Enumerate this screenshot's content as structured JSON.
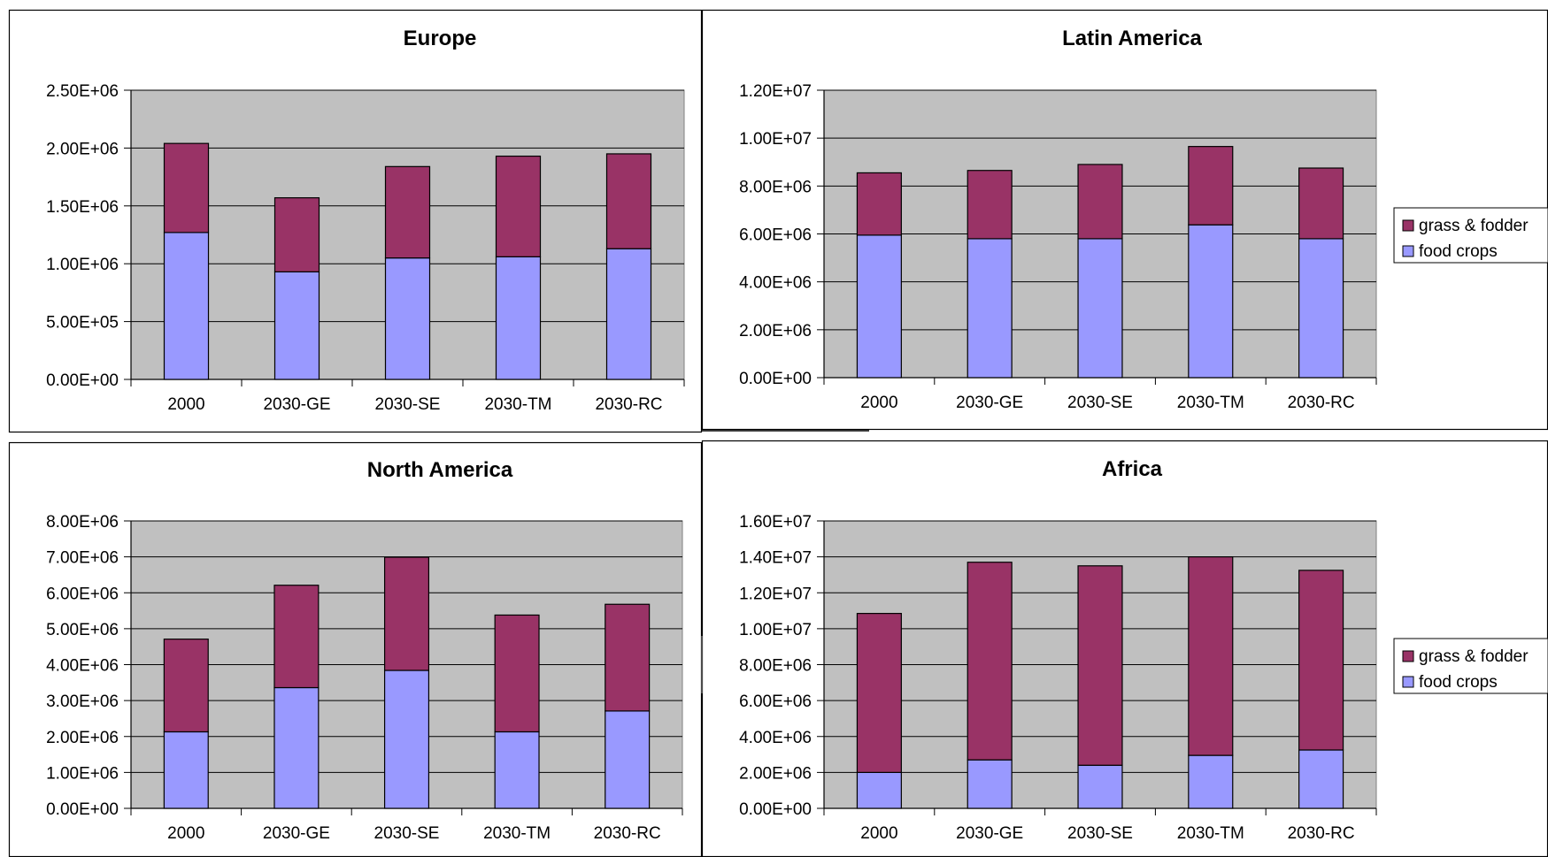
{
  "colors": {
    "food_crops": "#9999ff",
    "grass_fodder": "#993366",
    "plot_area": "#c0c0c0",
    "gridline": "#000000",
    "frame": "#000000"
  },
  "legend": {
    "entries": [
      "grass & fodder",
      "food crops"
    ],
    "placement": "right"
  },
  "chart_data": [
    {
      "type": "bar",
      "stacked": true,
      "title": "Europe",
      "categories": [
        "2000",
        "2030-GE",
        "2030-SE",
        "2030-TM",
        "2030-RC"
      ],
      "ylim": [
        0,
        2500000
      ],
      "yticks": [
        "0.00E+00",
        "5.00E+05",
        "1.00E+06",
        "1.50E+06",
        "2.00E+06",
        "2.50E+06"
      ],
      "grid": true,
      "legend": false,
      "series": [
        {
          "name": "food crops",
          "values": [
            1270000,
            930000,
            1050000,
            1060000,
            1130000
          ]
        },
        {
          "name": "grass & fodder",
          "values": [
            770000,
            640000,
            790000,
            870000,
            820000
          ]
        }
      ]
    },
    {
      "type": "bar",
      "stacked": true,
      "title": "Latin America",
      "categories": [
        "2000",
        "2030-GE",
        "2030-SE",
        "2030-TM",
        "2030-RC"
      ],
      "ylim": [
        0,
        12000000
      ],
      "yticks": [
        "0.00E+00",
        "2.00E+06",
        "4.00E+06",
        "6.00E+06",
        "8.00E+06",
        "1.00E+07",
        "1.20E+07"
      ],
      "grid": true,
      "legend": true,
      "series": [
        {
          "name": "food crops",
          "values": [
            5950000,
            5800000,
            5800000,
            6380000,
            5800000
          ]
        },
        {
          "name": "grass & fodder",
          "values": [
            2600000,
            2850000,
            3100000,
            3270000,
            2950000
          ]
        }
      ]
    },
    {
      "type": "bar",
      "stacked": true,
      "title": "North America",
      "categories": [
        "2000",
        "2030-GE",
        "2030-SE",
        "2030-TM",
        "2030-RC"
      ],
      "ylim": [
        0,
        8000000
      ],
      "yticks": [
        "0.00E+00",
        "1.00E+06",
        "2.00E+06",
        "3.00E+06",
        "4.00E+06",
        "5.00E+06",
        "6.00E+06",
        "7.00E+06",
        "8.00E+06"
      ],
      "grid": true,
      "legend": false,
      "series": [
        {
          "name": "food crops",
          "values": [
            2130000,
            3360000,
            3840000,
            2130000,
            2710000
          ]
        },
        {
          "name": "grass & fodder",
          "values": [
            2580000,
            2850000,
            3150000,
            3250000,
            2970000
          ]
        }
      ]
    },
    {
      "type": "bar",
      "stacked": true,
      "title": "Africa",
      "categories": [
        "2000",
        "2030-GE",
        "2030-SE",
        "2030-TM",
        "2030-RC"
      ],
      "ylim": [
        0,
        16000000
      ],
      "yticks": [
        "0.00E+00",
        "2.00E+06",
        "4.00E+06",
        "6.00E+06",
        "8.00E+06",
        "1.00E+07",
        "1.20E+07",
        "1.40E+07",
        "1.60E+07"
      ],
      "grid": true,
      "legend": true,
      "series": [
        {
          "name": "food crops",
          "values": [
            2000000,
            2700000,
            2400000,
            2950000,
            3250000
          ]
        },
        {
          "name": "grass & fodder",
          "values": [
            8850000,
            11000000,
            11100000,
            11050000,
            10000000
          ]
        }
      ]
    }
  ]
}
